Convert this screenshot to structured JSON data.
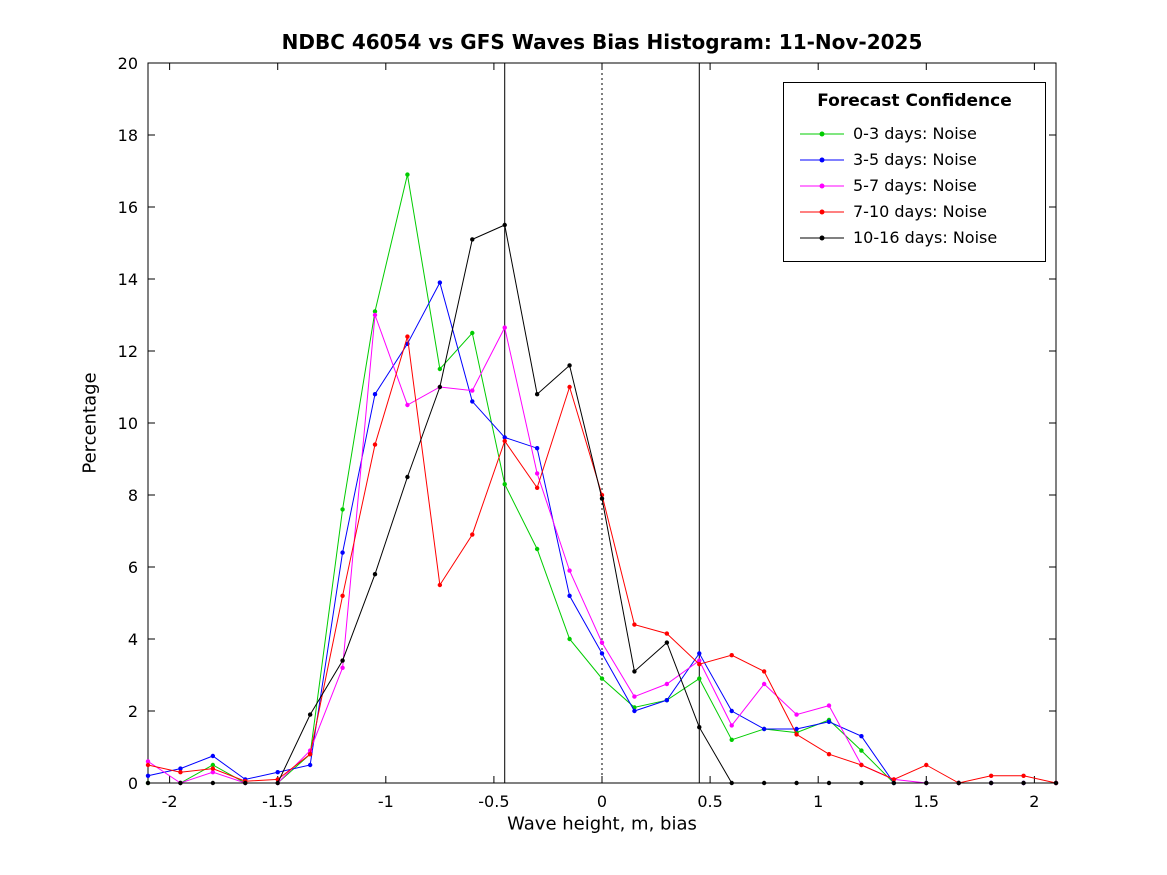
{
  "chart_data": {
    "type": "line",
    "title": "NDBC 46054 vs GFS Waves Bias Histogram: 11-Nov-2025",
    "xlabel": "Wave height, m, bias",
    "ylabel": "Percentage",
    "xlim": [
      -2.1,
      2.1
    ],
    "ylim": [
      0,
      20
    ],
    "xticks": [
      -2,
      -1.5,
      -1,
      -0.5,
      0,
      0.5,
      1,
      1.5,
      2
    ],
    "yticks": [
      0,
      2,
      4,
      6,
      8,
      10,
      12,
      14,
      16,
      18,
      20
    ],
    "grid": false,
    "x": [
      -2.1,
      -1.95,
      -1.8,
      -1.65,
      -1.5,
      -1.35,
      -1.2,
      -1.05,
      -0.9,
      -0.75,
      -0.6,
      -0.45,
      -0.3,
      -0.15,
      0,
      0.15,
      0.3,
      0.45,
      0.6,
      0.75,
      0.9,
      1.05,
      1.2,
      1.35,
      1.5,
      1.65,
      1.8,
      1.95,
      2.1
    ],
    "series": [
      {
        "name": "0-3 days: Noise",
        "color": "#00CC00",
        "values": [
          0,
          0,
          0.5,
          0,
          0,
          0.8,
          7.6,
          13.1,
          16.9,
          11.5,
          12.5,
          8.3,
          6.5,
          4.0,
          2.9,
          2.1,
          2.3,
          2.9,
          1.2,
          1.5,
          1.4,
          1.75,
          0.9,
          0,
          0,
          0,
          0,
          0,
          0
        ]
      },
      {
        "name": "3-5 days: Noise",
        "color": "#0000FF",
        "values": [
          0.2,
          0.4,
          0.75,
          0.1,
          0.3,
          0.5,
          6.4,
          10.8,
          12.2,
          13.9,
          10.6,
          9.6,
          9.3,
          5.2,
          3.6,
          2.0,
          2.3,
          3.6,
          2.0,
          1.5,
          1.5,
          1.7,
          1.3,
          0,
          0,
          0,
          0,
          0,
          0
        ]
      },
      {
        "name": "5-7 days: Noise",
        "color": "#FF00FF",
        "values": [
          0.6,
          0,
          0.3,
          0,
          0,
          0.9,
          3.2,
          13.0,
          10.5,
          11.0,
          10.9,
          12.65,
          8.6,
          5.9,
          3.9,
          2.4,
          2.75,
          3.4,
          1.6,
          2.75,
          1.9,
          2.15,
          0.5,
          0.1,
          0,
          0,
          0,
          0,
          0
        ]
      },
      {
        "name": "7-10 days: Noise",
        "color": "#FF0000",
        "values": [
          0.5,
          0.3,
          0.4,
          0.05,
          0.1,
          0.8,
          5.2,
          9.4,
          12.4,
          5.5,
          6.9,
          9.5,
          8.2,
          11.0,
          8.0,
          4.4,
          4.15,
          3.3,
          3.55,
          3.1,
          1.35,
          0.8,
          0.5,
          0.1,
          0.5,
          0,
          0.2,
          0.2,
          0
        ]
      },
      {
        "name": "10-16 days: Noise",
        "color": "#000000",
        "values": [
          0,
          0,
          0,
          0,
          0,
          1.9,
          3.4,
          5.8,
          8.5,
          11.0,
          15.1,
          15.5,
          10.8,
          11.6,
          7.9,
          3.1,
          3.9,
          1.55,
          0,
          0,
          0,
          0,
          0,
          0,
          0,
          0,
          0,
          0,
          0
        ]
      }
    ],
    "vlines": [
      {
        "x": -0.45,
        "style": "solid",
        "color": "#000000"
      },
      {
        "x": 0,
        "style": "dotted",
        "color": "#000000"
      },
      {
        "x": 0.45,
        "style": "solid",
        "color": "#000000"
      }
    ],
    "legend": {
      "title": "Forecast Confidence",
      "position": "top-right"
    }
  }
}
